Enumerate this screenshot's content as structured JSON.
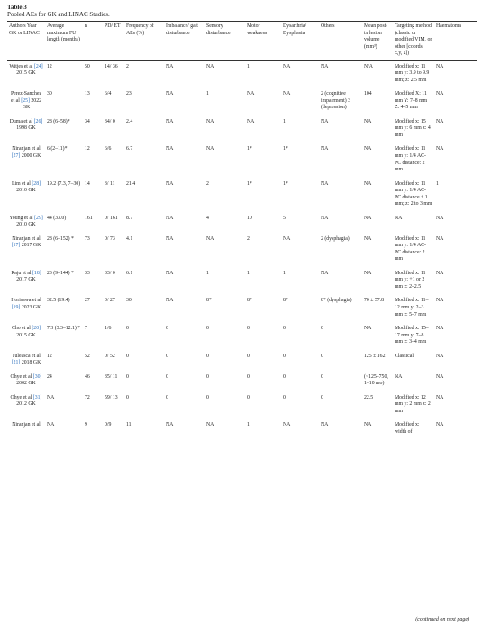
{
  "table": {
    "label": "Table 3",
    "caption": "Pooled AEs for GK and LINAC Studies.",
    "headers": [
      "Authors Year GK or LINAC",
      "Average maximum FU length (months)",
      "n",
      "PD/ ET",
      "Frequency of AEs (%)",
      "Imbalance/ gait disturbance",
      "Sensory disturbance",
      "Motor weakness",
      "Dysarthria/ Dysphasia",
      "Others",
      "Mean post-tx lesion volume (mm³)",
      "Targeting method (classic or modified VIM, or other [coords: x,y, z])",
      "Haematoma"
    ],
    "rows": [
      {
        "author": "Witjes et al",
        "ref": "[24]",
        "year": "2015",
        "method": "GK",
        "cells": [
          "12",
          "50",
          "14/ 36",
          "2",
          "NA",
          "NA",
          "1",
          "NA",
          "NA",
          "N/A",
          "Modified x: 11 mm y: 3.9 to 9.9 mm; z: 2.5 mm",
          "NA"
        ]
      },
      {
        "author": "Perez-Sanchez et al",
        "ref": "[25]",
        "year": "2022",
        "method": "GK",
        "cells": [
          "30",
          "13",
          "6/4",
          "23",
          "NA",
          "1",
          "NA",
          "NA",
          "2 (cognitive impairment) 3 (depression)",
          "104",
          "Modified X: 11 mm Y: 7–8 mm Z: 4–5 mm",
          "NA"
        ]
      },
      {
        "author": "Duma et al",
        "ref": "[26]",
        "year": "1998",
        "method": "GK",
        "cells": [
          "28 (6–58)*",
          "34",
          "34/ 0",
          "2.4",
          "NA",
          "NA",
          "NA",
          "1",
          "NA",
          "NA",
          "Modified x: 15 mm y: 6 mm z: 4 mm",
          "NA"
        ]
      },
      {
        "author": "Niranjan et al",
        "ref": "[27]",
        "year": "2000",
        "method": "GK",
        "cells": [
          "6 (2–11)*",
          "12",
          "6/6",
          "6.7",
          "NA",
          "NA",
          "1*",
          "1*",
          "NA",
          "NA",
          "Modified x: 11 mm y: 1/4 AC-PC distance: 2 mm",
          "NA"
        ]
      },
      {
        "author": "Lim et al",
        "ref": "[28]",
        "year": "2010",
        "method": "GK",
        "cells": [
          "19.2 (7.3, 7–30)",
          "14",
          "3/ 11",
          "21.4",
          "NA",
          "2",
          "1*",
          "1*",
          "NA",
          "NA",
          "Modified x: 11 mm y: 1/4 AC-PC distance + 1 mm; z: 2 to 3 mm",
          "1"
        ]
      },
      {
        "author": "Young et al",
        "ref": "[29]",
        "year": "2010",
        "method": "GK",
        "cells": [
          "44 (33.0)",
          "161",
          "0/ 161",
          "8.7",
          "NA",
          "4",
          "10",
          "5",
          "NA",
          "NA",
          "NA",
          "NA"
        ]
      },
      {
        "author": "Niranjan et al",
        "ref": "[17]",
        "year": "2017",
        "method": "GK",
        "cells": [
          "28 (6–152) *",
          "73",
          "0/ 73",
          "4.1",
          "NA",
          "NA",
          "2",
          "NA",
          "2 (dysphagia)",
          "NA",
          "Modified x: 11 mm y: 1/4 AC-PC distance: 2 mm",
          "NA"
        ]
      },
      {
        "author": "Raju et al",
        "ref": "[18]",
        "year": "2017",
        "method": "GK",
        "cells": [
          "23 (9–144) *",
          "33",
          "33/ 0",
          "6.1",
          "NA",
          "1",
          "1",
          "1",
          "NA",
          "NA",
          "Modified x: 11 mm y: +1 or 2 mm z: 2–2.5",
          "NA"
        ]
      },
      {
        "author": "Horisawa et al",
        "ref": "[19]",
        "year": "2023",
        "method": "GK",
        "cells": [
          "32.5 (19.4)",
          "27",
          "0/ 27",
          "30",
          "NA",
          "8*",
          "8*",
          "8*",
          "8* (dysphagia)",
          "70 ± 57.8",
          "Modified x: 11–12 mm y: 2–3 mm z: 5–7 mm",
          "NA"
        ]
      },
      {
        "author": "Cho et al",
        "ref": "[20]",
        "year": "2015",
        "method": "GK",
        "cells": [
          "7.3 (3.3–12.1) *",
          "7",
          "1/6",
          "0",
          "0",
          "0",
          "0",
          "0",
          "0",
          "NA",
          "Modified x: 15–17 mm y: 7–8 mm z: 3–4 mm",
          "NA"
        ]
      },
      {
        "author": "Tuleasca et al",
        "ref": "[21]",
        "year": "2018",
        "method": "GK",
        "cells": [
          "12",
          "52",
          "0/ 52",
          "0",
          "0",
          "0",
          "0",
          "0",
          "0",
          "125 ± 162",
          "Classical",
          "NA"
        ]
      },
      {
        "author": "Ohye et al",
        "ref": "[30]",
        "year": "2002",
        "method": "GK",
        "cells": [
          "24",
          "46",
          "35/ 11",
          "0",
          "0",
          "0",
          "0",
          "0",
          "0",
          "(~125–750, 1–10 mo)",
          "NA",
          "NA"
        ]
      },
      {
        "author": "Ohye et al",
        "ref": "[31]",
        "year": "2012",
        "method": "GK",
        "cells": [
          "NA",
          "72",
          "59/ 13",
          "0",
          "0",
          "0",
          "0",
          "0",
          "0",
          "22.5",
          "Modified x: 12 mm y: 2 mm z: 2 mm",
          "NA"
        ]
      },
      {
        "author": "Niranjan et al",
        "cells": [
          "NA",
          "9",
          "0/9",
          "11",
          "NA",
          "NA",
          "1",
          "NA",
          "NA",
          "NA",
          "Modified x: width of",
          "NA"
        ]
      }
    ],
    "footer": "(continued on next page)"
  }
}
